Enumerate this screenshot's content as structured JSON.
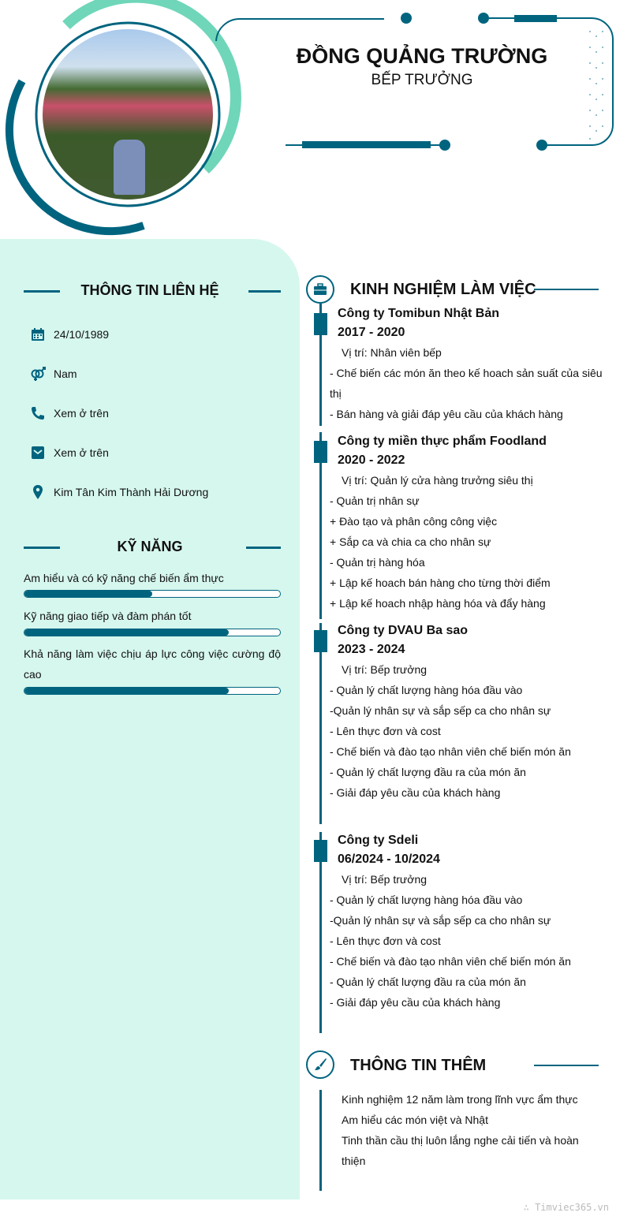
{
  "header": {
    "name": "ĐỒNG QUẢNG TRƯỜNG",
    "title": "BẾP TRƯỞNG"
  },
  "colors": {
    "primary": "#00647f",
    "accent": "#6fd6b9",
    "panel": "#d6f7ee"
  },
  "contact": {
    "heading": "THÔNG TIN LIÊN HỆ",
    "items": [
      {
        "icon": "calendar-icon",
        "text": "24/10/1989"
      },
      {
        "icon": "gender-icon",
        "text": "Nam"
      },
      {
        "icon": "phone-icon",
        "text": "Xem ở trên"
      },
      {
        "icon": "email-icon",
        "text": "Xem ở trên"
      },
      {
        "icon": "location-icon",
        "text": "Kim Tân Kim Thành Hải Dương"
      }
    ]
  },
  "skills": {
    "heading": "KỸ NĂNG",
    "items": [
      {
        "label": "Am hiểu và có kỹ năng chế biến ẩm thực",
        "level": 50
      },
      {
        "label": "Kỹ năng giao tiếp và đàm phán tốt",
        "level": 80
      },
      {
        "label": "Khả năng làm việc chịu áp lực công việc cường độ cao",
        "level": 80
      }
    ]
  },
  "experience": {
    "heading": "KINH NGHIỆM LÀM VIỆC",
    "jobs": [
      {
        "company": "Công ty Tomibun Nhật Bản",
        "period": "2017 - 2020",
        "position": "Vị trí: Nhân viên bếp",
        "lines": [
          "- Chế biến các món ăn theo kế hoach sản suất của siêu thị",
          "- Bán hàng và giải đáp yêu cầu của khách hàng"
        ]
      },
      {
        "company": "Công ty miền thực phẩm Foodland",
        "period": "2020 - 2022",
        "position": "Vị trí: Quản lý cửa hàng trưởng siêu thị",
        "lines": [
          "- Quản trị nhân sự",
          "+ Đào tạo và phân công công việc",
          "+ Sắp ca và chia ca cho nhân sự",
          "- Quản trị hàng hóa",
          "+ Lập kế hoach bán hàng cho từng thời điểm",
          "+ Lập kế hoach nhập hàng hóa và đẩy hàng"
        ]
      },
      {
        "company": "Công ty DVAU Ba sao",
        "period": "2023 - 2024",
        "position": "Vị trí: Bếp trưởng",
        "lines": [
          "- Quản lý chất lượng hàng hóa đầu vào",
          "-Quản lý nhân sự và sắp sếp ca cho nhân sự",
          "- Lên thực đơn và cost",
          "- Chế biến và đào tạo nhân viên chế biến món ăn",
          "- Quản lý chất lượng đầu ra của món ăn",
          "- Giải đáp yêu cầu của khách hàng"
        ]
      },
      {
        "company": "Công ty Sdeli",
        "period": "06/2024 - 10/2024",
        "position": "Vị trí: Bếp trưởng",
        "lines": [
          "- Quản lý chất lượng hàng hóa đầu vào",
          "-Quản lý nhân sự và sắp sếp ca cho nhân sự",
          "- Lên thực đơn và cost",
          "- Chế biến và đào tạo nhân viên chế biến món ăn",
          "- Quản lý chất lượng đầu ra của món ăn",
          "- Giải đáp yêu cầu của khách hàng"
        ]
      }
    ]
  },
  "extra": {
    "heading": "THÔNG TIN THÊM",
    "lines": [
      "Kinh nghiệm 12 năm làm trong lĩnh vực ẩm thực",
      "Am hiểu các món việt và Nhật",
      "Tinh thần cầu thị luôn lắng nghe cải tiến và hoàn thiện"
    ]
  },
  "footer": {
    "brand": "Timviec365.vn"
  }
}
